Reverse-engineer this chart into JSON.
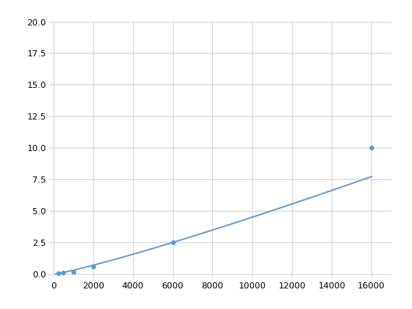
{
  "x": [
    250,
    500,
    1000,
    2000,
    6000,
    16000
  ],
  "y": [
    0.1,
    0.15,
    0.2,
    0.6,
    2.5,
    10.0
  ],
  "line_color": "#5b9bd5",
  "marker_color": "#5b9bd5",
  "marker_size": 4,
  "line_width": 1.5,
  "xlim": [
    -200,
    17000
  ],
  "ylim": [
    -0.3,
    20.0
  ],
  "xticks": [
    0,
    2000,
    4000,
    6000,
    8000,
    10000,
    12000,
    14000,
    16000
  ],
  "yticks": [
    0.0,
    2.5,
    5.0,
    7.5,
    10.0,
    12.5,
    15.0,
    17.5,
    20.0
  ],
  "grid_color": "#d0d0d0",
  "background_color": "#ffffff",
  "figsize": [
    6.0,
    4.5
  ],
  "dpi": 100
}
